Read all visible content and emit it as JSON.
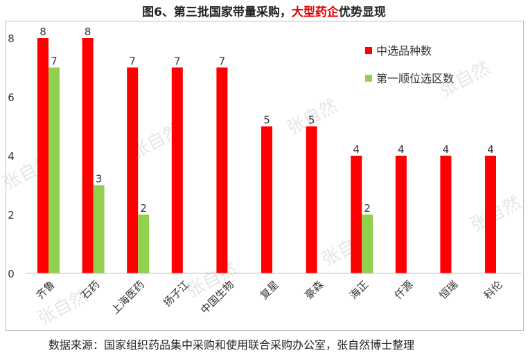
{
  "title_parts": {
    "prefix": "图6、第三批国家带量采购，",
    "highlight": "大型药企",
    "suffix": "优势显现"
  },
  "source": "数据来源：国家组织药品集中采购和使用联合采购办公室，张自然博士整理",
  "watermark": "张自然",
  "colors": {
    "series1": "#ff0000",
    "series2": "#92d050",
    "title_highlight": "#e00000"
  },
  "chart_data": {
    "type": "bar",
    "title": "图6、第三批国家带量采购，大型药企优势显现",
    "categories": [
      "齐鲁",
      "石药",
      "上海医药",
      "扬子江",
      "中国生物",
      "复星",
      "豪森",
      "海正",
      "仟源",
      "恒瑞",
      "科伦"
    ],
    "series": [
      {
        "name": "中选品种数",
        "values": [
          8,
          8,
          7,
          7,
          7,
          5,
          5,
          4,
          4,
          4,
          4
        ]
      },
      {
        "name": "第一顺位选区数",
        "values": [
          7,
          3,
          2,
          null,
          null,
          null,
          null,
          2,
          null,
          null,
          null
        ]
      }
    ],
    "ylim": [
      0,
      8
    ],
    "yticks": [
      "0",
      "2",
      "4",
      "6",
      "8"
    ],
    "legend_position": "top-right",
    "grid": false,
    "data_labels": true
  }
}
